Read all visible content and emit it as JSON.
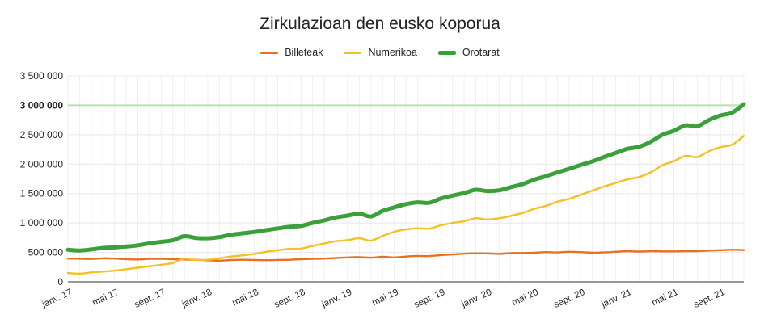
{
  "chart_data": {
    "type": "line",
    "title": "Zirkulazioan den eusko koporua",
    "xlabel": "",
    "ylabel": "",
    "ylim": [
      0,
      3500000
    ],
    "grid": true,
    "legend": "top",
    "y_ticks": [
      {
        "value": 0,
        "label": "0"
      },
      {
        "value": 500000,
        "label": "500 000"
      },
      {
        "value": 1000000,
        "label": "1 000 000"
      },
      {
        "value": 1500000,
        "label": "1 500 000"
      },
      {
        "value": 2000000,
        "label": "2 000 000"
      },
      {
        "value": 2500000,
        "label": "2 500 000"
      },
      {
        "value": 3000000,
        "label": "3 000 000",
        "highlight": true
      },
      {
        "value": 3500000,
        "label": "3 500 000"
      }
    ],
    "reference_line": {
      "value": 3000000,
      "color": "#b7e1b0"
    },
    "x_ticks": [
      "janv. 17",
      "mai 17",
      "sept. 17",
      "janv. 18",
      "mai 18",
      "sept. 18",
      "janv. 19",
      "mai 19",
      "sept. 19",
      "janv. 20",
      "mai 20",
      "sept. 20",
      "janv. 21",
      "mai 21",
      "sept. 21"
    ],
    "x": [
      "janv. 17",
      "févr. 17",
      "mars 17",
      "avr. 17",
      "mai 17",
      "juin 17",
      "juil. 17",
      "août 17",
      "sept. 17",
      "oct. 17",
      "nov. 17",
      "déc. 17",
      "janv. 18",
      "févr. 18",
      "mars 18",
      "avr. 18",
      "mai 18",
      "juin 18",
      "juil. 18",
      "août 18",
      "sept. 18",
      "oct. 18",
      "nov. 18",
      "déc. 18",
      "janv. 19",
      "févr. 19",
      "mars 19",
      "avr. 19",
      "mai 19",
      "juin 19",
      "juil. 19",
      "août 19",
      "sept. 19",
      "oct. 19",
      "nov. 19",
      "déc. 19",
      "janv. 20",
      "févr. 20",
      "mars 20",
      "avr. 20",
      "mai 20",
      "juin 20",
      "juil. 20",
      "août 20",
      "sept. 20",
      "oct. 20",
      "nov. 20",
      "déc. 20",
      "janv. 21",
      "févr. 21",
      "mars 21",
      "avr. 21",
      "mai 21",
      "juin 21",
      "juil. 21",
      "août 21",
      "sept. 21",
      "oct. 21",
      "nov. 21"
    ],
    "series": [
      {
        "name": "Billeteak",
        "color": "#e8711f",
        "values": [
          395000,
          393000,
          390000,
          400000,
          395000,
          385000,
          380000,
          390000,
          390000,
          385000,
          380000,
          375000,
          365000,
          360000,
          370000,
          375000,
          372000,
          368000,
          372000,
          375000,
          385000,
          390000,
          395000,
          405000,
          415000,
          420000,
          410000,
          425000,
          415000,
          430000,
          440000,
          438000,
          455000,
          465000,
          478000,
          485000,
          483000,
          475000,
          488000,
          490000,
          495000,
          505000,
          500000,
          510000,
          505000,
          495000,
          500000,
          510000,
          520000,
          515000,
          520000,
          518000,
          517000,
          520000,
          522000,
          530000,
          538000,
          545000,
          540000
        ]
      },
      {
        "name": "Numerikoa",
        "color": "#f4c023",
        "values": [
          150000,
          140000,
          160000,
          175000,
          190000,
          215000,
          240000,
          265000,
          290000,
          320000,
          395000,
          370000,
          375000,
          400000,
          430000,
          450000,
          475000,
          510000,
          535000,
          560000,
          565000,
          610000,
          650000,
          690000,
          710000,
          740000,
          700000,
          780000,
          850000,
          890000,
          910000,
          905000,
          960000,
          1000000,
          1030000,
          1080000,
          1060000,
          1080000,
          1120000,
          1170000,
          1240000,
          1290000,
          1360000,
          1410000,
          1480000,
          1550000,
          1620000,
          1680000,
          1740000,
          1780000,
          1860000,
          1980000,
          2050000,
          2140000,
          2120000,
          2220000,
          2290000,
          2330000,
          2480000
        ]
      },
      {
        "name": "Orotarat",
        "color": "#3aa03a",
        "values": [
          545000,
          533000,
          550000,
          575000,
          585000,
          600000,
          620000,
          655000,
          680000,
          705000,
          775000,
          745000,
          740000,
          760000,
          800000,
          825000,
          847000,
          878000,
          907000,
          935000,
          950000,
          1000000,
          1045000,
          1095000,
          1125000,
          1160000,
          1110000,
          1205000,
          1265000,
          1320000,
          1350000,
          1343000,
          1415000,
          1465000,
          1508000,
          1565000,
          1543000,
          1555000,
          1608000,
          1660000,
          1735000,
          1795000,
          1860000,
          1920000,
          1985000,
          2045000,
          2120000,
          2190000,
          2260000,
          2295000,
          2380000,
          2498000,
          2567000,
          2660000,
          2642000,
          2750000,
          2828000,
          2875000,
          3020000
        ]
      }
    ]
  }
}
